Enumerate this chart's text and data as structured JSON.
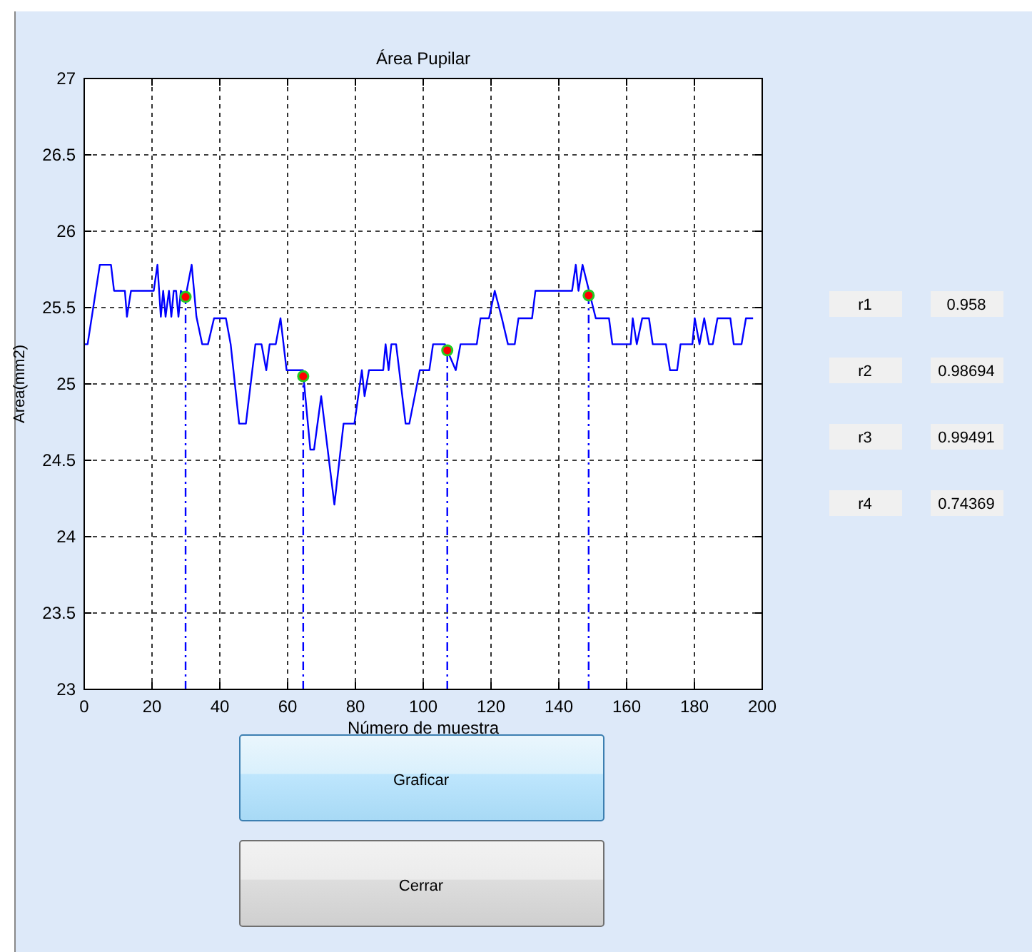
{
  "chart_data": [
    {
      "type": "line",
      "title": "Área Pupilar",
      "xlabel": "Número de muestra",
      "ylabel": "Area(mm2)",
      "xlim": [
        0,
        200
      ],
      "xticks": [
        0,
        20,
        40,
        60,
        80,
        100,
        120,
        140,
        160,
        180,
        200
      ],
      "ylim": [
        23,
        27
      ],
      "yticks": [
        23,
        23.5,
        24,
        24.5,
        25,
        25.5,
        26,
        26.5,
        27
      ],
      "grid": true,
      "marker": "none",
      "line_style": "solid",
      "series": [
        {
          "color": "#0000ff",
          "x": [
            0,
            1,
            4.6,
            7.9,
            8.8,
            12,
            12.6,
            13.8,
            20.5,
            21.6,
            22.6,
            23.3,
            24,
            25,
            25.7,
            26.4,
            27.1,
            27.8,
            28.5,
            29.9,
            31.7,
            33.1,
            34.8,
            36.5,
            38.3,
            41.8,
            43.2,
            45.7,
            47.7,
            50.5,
            52.3,
            53.7,
            54.7,
            56.5,
            57.9,
            59.7,
            64.5,
            66.7,
            67.8,
            69.9,
            73.8,
            76.5,
            79.7,
            81.9,
            82.7,
            84,
            88.2,
            88.9,
            89.8,
            90.6,
            92,
            94.8,
            95.9,
            99,
            101.8,
            102.9,
            106.4,
            107.1,
            109.6,
            111,
            115.8,
            116.9,
            119.4,
            121.1,
            123.2,
            125,
            127,
            128.1,
            132.1,
            133.1,
            143.9,
            145,
            145.8,
            147,
            150.9,
            154.8,
            155.8,
            161.2,
            161.8,
            163,
            164.6,
            166.6,
            167.7,
            171.6,
            172.8,
            174.9,
            175.9,
            179.4,
            180.1,
            181.5,
            182.9,
            184.3,
            185.4,
            186.8,
            190.6,
            191.6,
            193.9,
            195.2,
            197.3
          ],
          "values": [
            25.26,
            25.26,
            25.78,
            25.78,
            25.61,
            25.61,
            25.44,
            25.61,
            25.61,
            25.78,
            25.44,
            25.61,
            25.44,
            25.61,
            25.44,
            25.61,
            25.61,
            25.44,
            25.61,
            25.57,
            25.78,
            25.44,
            25.26,
            25.26,
            25.43,
            25.43,
            25.26,
            24.74,
            24.74,
            25.26,
            25.26,
            25.09,
            25.26,
            25.26,
            25.43,
            25.09,
            25.09,
            24.57,
            24.57,
            24.92,
            24.21,
            24.74,
            24.74,
            25.09,
            24.92,
            25.09,
            25.09,
            25.26,
            25.09,
            25.26,
            25.26,
            24.74,
            24.74,
            25.09,
            25.09,
            25.26,
            25.26,
            25.22,
            25.09,
            25.26,
            25.26,
            25.43,
            25.43,
            25.61,
            25.43,
            25.26,
            25.26,
            25.43,
            25.43,
            25.61,
            25.61,
            25.78,
            25.61,
            25.78,
            25.43,
            25.43,
            25.26,
            25.26,
            25.43,
            25.26,
            25.43,
            25.43,
            25.26,
            25.26,
            25.09,
            25.09,
            25.26,
            25.26,
            25.43,
            25.26,
            25.43,
            25.26,
            25.26,
            25.43,
            25.43,
            25.26,
            25.26,
            25.43,
            25.43
          ]
        },
        {
          "type": "scatter",
          "marker": "circle",
          "color": "#ff0000",
          "x": [
            29.9,
            64.6,
            107.1,
            148.8
          ],
          "values": [
            25.57,
            25.05,
            25.22,
            25.58
          ]
        }
      ],
      "ref_lines": [
        {
          "axis": "x",
          "value": 29.9,
          "color": "#0000ff",
          "line_style": "dashed"
        },
        {
          "axis": "x",
          "value": 64.6,
          "color": "#0000ff",
          "line_style": "dashed"
        },
        {
          "axis": "x",
          "value": 107.1,
          "color": "#0000ff",
          "line_style": "dashed"
        },
        {
          "axis": "x",
          "value": 148.8,
          "color": "#0000ff",
          "line_style": "dashed"
        }
      ]
    },
    {
      "type": "other",
      "annotations": [
        "r1",
        "0.958",
        "r2",
        "0.98694",
        "r3",
        "0.99491",
        "r4",
        "0.74369"
      ]
    },
    {
      "type": "other",
      "annotations": [
        "Graficar",
        "Cerrar"
      ]
    }
  ]
}
